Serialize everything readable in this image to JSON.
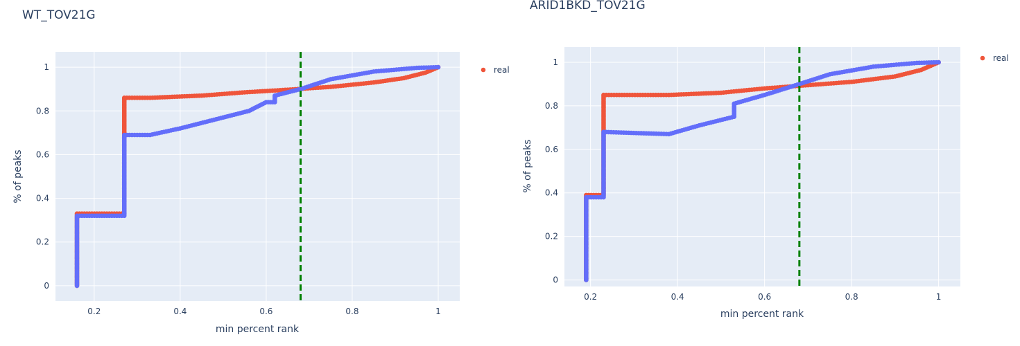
{
  "chart_data": [
    {
      "type": "scatter",
      "title": "WT_TOV21G",
      "xlabel": "min percent rank",
      "ylabel": "% of peaks",
      "xlim": [
        0.11,
        1.05
      ],
      "ylim": [
        -0.07,
        1.07
      ],
      "xticks": [
        0.2,
        0.4,
        0.6,
        0.8,
        1
      ],
      "xtick_labels": [
        "0.2",
        "0.4",
        "0.6",
        "0.8",
        "1"
      ],
      "yticks": [
        0,
        0.2,
        0.4,
        0.6,
        0.8,
        1
      ],
      "ytick_labels": [
        "0",
        "0.2",
        "0.4",
        "0.6",
        "0.8",
        "1"
      ],
      "grid": true,
      "legend": {
        "entries": [
          "real"
        ],
        "position": "top-right"
      },
      "vline": {
        "x": 0.68,
        "color": "#008000",
        "style": "dashed"
      },
      "series": [
        {
          "name": "real",
          "color": "#ef553b",
          "x": [
            0.16,
            0.16,
            0.27,
            0.27,
            0.27,
            0.33,
            0.45,
            0.55,
            0.65,
            0.75,
            0.85,
            0.92,
            0.97,
            1.0
          ],
          "y": [
            0.0,
            0.33,
            0.33,
            0.78,
            0.86,
            0.86,
            0.87,
            0.885,
            0.897,
            0.91,
            0.93,
            0.95,
            0.975,
            1.0
          ]
        },
        {
          "color": "#636efa",
          "x": [
            0.16,
            0.16,
            0.27,
            0.27,
            0.33,
            0.4,
            0.5,
            0.56,
            0.6,
            0.62,
            0.62,
            0.68,
            0.75,
            0.85,
            0.95,
            1.0
          ],
          "y": [
            0.0,
            0.32,
            0.32,
            0.69,
            0.69,
            0.72,
            0.77,
            0.8,
            0.84,
            0.84,
            0.87,
            0.9,
            0.945,
            0.98,
            0.997,
            1.0
          ]
        }
      ]
    },
    {
      "type": "scatter",
      "title": "ARID1BKD_TOV21G",
      "xlabel": "min percent rank",
      "ylabel": "% of peaks",
      "xlim": [
        0.14,
        1.05
      ],
      "ylim": [
        -0.03,
        1.07
      ],
      "xticks": [
        0.2,
        0.4,
        0.6,
        0.8,
        1
      ],
      "xtick_labels": [
        "0.2",
        "0.4",
        "0.6",
        "0.8",
        "1"
      ],
      "yticks": [
        0,
        0.2,
        0.4,
        0.6,
        0.8,
        1
      ],
      "ytick_labels": [
        "0",
        "0.2",
        "0.4",
        "0.6",
        "0.8",
        "1"
      ],
      "grid": true,
      "legend": {
        "entries": [
          "real"
        ],
        "position": "top-right"
      },
      "vline": {
        "x": 0.68,
        "color": "#008000",
        "style": "dashed"
      },
      "series": [
        {
          "name": "real",
          "color": "#ef553b",
          "x": [
            0.19,
            0.19,
            0.23,
            0.23,
            0.23,
            0.38,
            0.5,
            0.6,
            0.7,
            0.8,
            0.9,
            0.96,
            1.0
          ],
          "y": [
            0.0,
            0.39,
            0.39,
            0.68,
            0.85,
            0.85,
            0.86,
            0.88,
            0.895,
            0.91,
            0.935,
            0.965,
            1.0
          ]
        },
        {
          "color": "#636efa",
          "x": [
            0.19,
            0.19,
            0.23,
            0.23,
            0.38,
            0.45,
            0.53,
            0.53,
            0.6,
            0.68,
            0.75,
            0.85,
            0.95,
            1.0
          ],
          "y": [
            0.0,
            0.38,
            0.38,
            0.68,
            0.67,
            0.71,
            0.75,
            0.81,
            0.85,
            0.9,
            0.945,
            0.98,
            0.997,
            1.0
          ]
        }
      ]
    }
  ]
}
